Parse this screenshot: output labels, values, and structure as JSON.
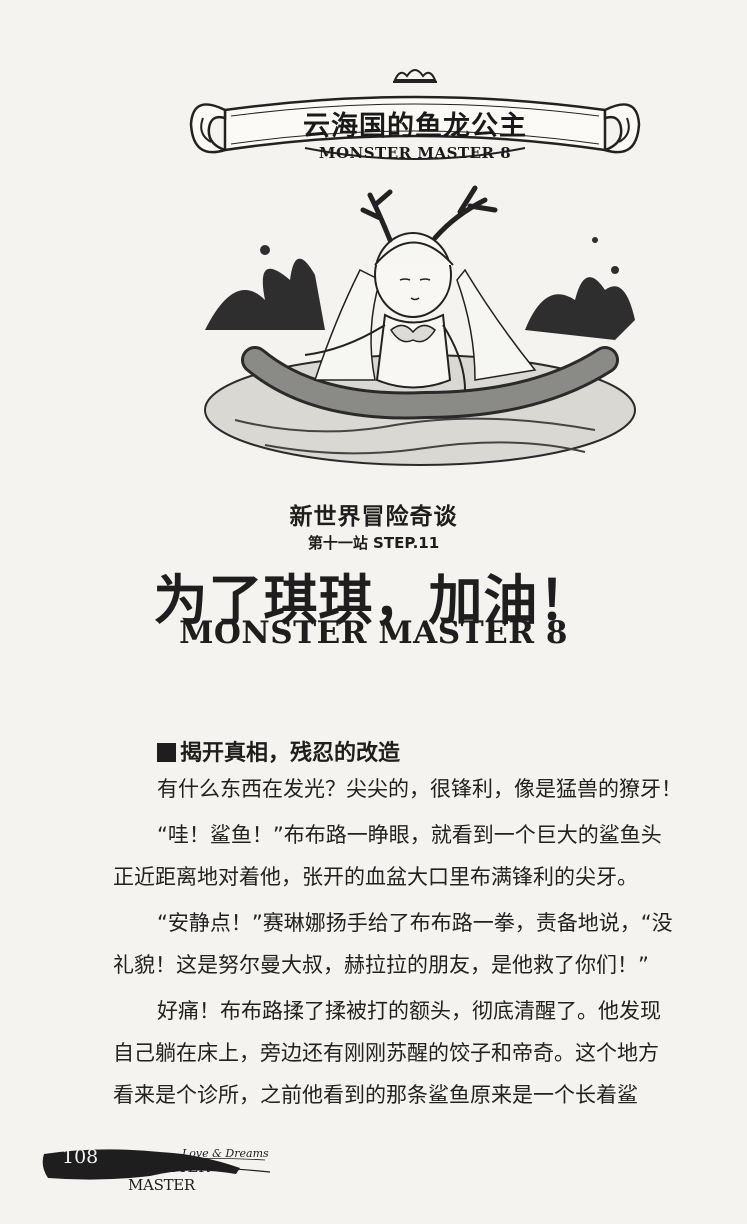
{
  "banner": {
    "title": "云海国的鱼龙公主",
    "subtitle": "MONSTER MASTER 8"
  },
  "chapter": {
    "series": "新世界冒险奇谈",
    "step": "第十一站 STEP.11",
    "title": "为了琪琪，加油！",
    "subtitle": "MONSTER MASTER 8"
  },
  "section": {
    "heading": "揭开真相，残忍的改造"
  },
  "body": {
    "lines": [
      "有什么东西在发光？尖尖的，很锋利，像是猛兽的獠牙！",
      "“哇！鲨鱼！”布布路一睁眼，就看到一个巨大的鲨鱼头",
      "正近距离地对着他，张开的血盆大口里布满锋利的尖牙。",
      "“安静点！”赛琳娜扬手给了布布路一拳，责备地说，“没",
      "礼貌！这是努尔曼大叔，赫拉拉的朋友，是他救了你们！”",
      "好痛！布布路揉了揉被打的额头，彻底清醒了。他发现",
      "自己躺在床上，旁边还有刚刚苏醒的饺子和帝奇。这个地方",
      "看来是个诊所，之前他看到的那条鲨鱼原来是一个长着鲨"
    ]
  },
  "footer": {
    "page_number": "108",
    "tagline": "Love & Dreams",
    "brand": "MONSTER MASTER"
  }
}
